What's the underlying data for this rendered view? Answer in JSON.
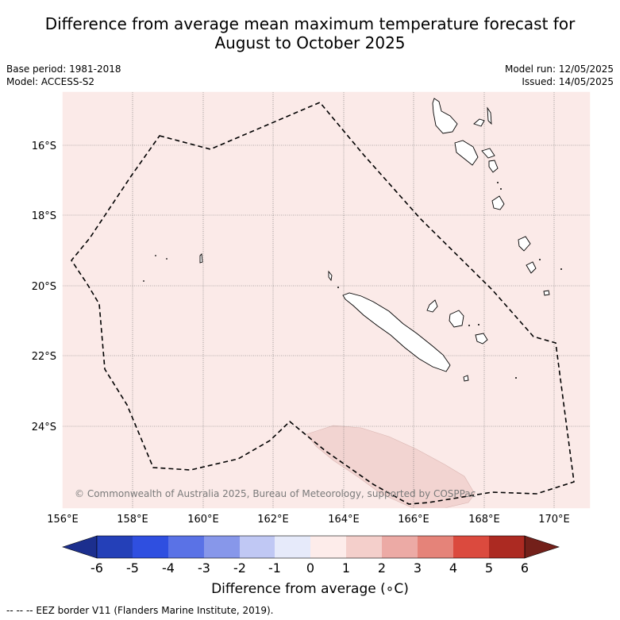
{
  "title": {
    "line1": "Difference from average mean maximum temperature forecast for",
    "line2": "August to October 2025"
  },
  "meta_left": {
    "base_period": "Base period: 1981-2018",
    "model": "Model: ACCESS-S2"
  },
  "meta_right": {
    "model_run": "Model run: 12/05/2025",
    "issued": "Issued: 14/05/2025"
  },
  "map": {
    "lon_ticks": [
      "156°E",
      "158°E",
      "160°E",
      "162°E",
      "164°E",
      "166°E",
      "168°E",
      "170°E"
    ],
    "lat_ticks": [
      "16°S",
      "18°S",
      "20°S",
      "22°S",
      "24°S"
    ],
    "background_color": "#fbeae8",
    "anomaly_patch_color": "#f2d4d1",
    "copyright": "© Commonwealth of Australia 2025, Bureau of Meteorology, supported by COSPPac"
  },
  "colorbar": {
    "tick_labels": [
      "-6",
      "-5",
      "-4",
      "-3",
      "-2",
      "-1",
      "0",
      "1",
      "2",
      "3",
      "4",
      "5",
      "6"
    ],
    "colors": [
      "#1c2f8e",
      "#2440b8",
      "#2f4fe0",
      "#5a72e6",
      "#8797ea",
      "#c0c8f4",
      "#e6eafa",
      "#fdecea",
      "#f4cfcb",
      "#ecaaa5",
      "#e58379",
      "#db4a3e",
      "#ac2a22",
      "#73201a"
    ],
    "label": "Difference from average (∘C)"
  },
  "footer": "--  --  -- EEZ border V11 (Flanders Marine Institute, 2019)."
}
